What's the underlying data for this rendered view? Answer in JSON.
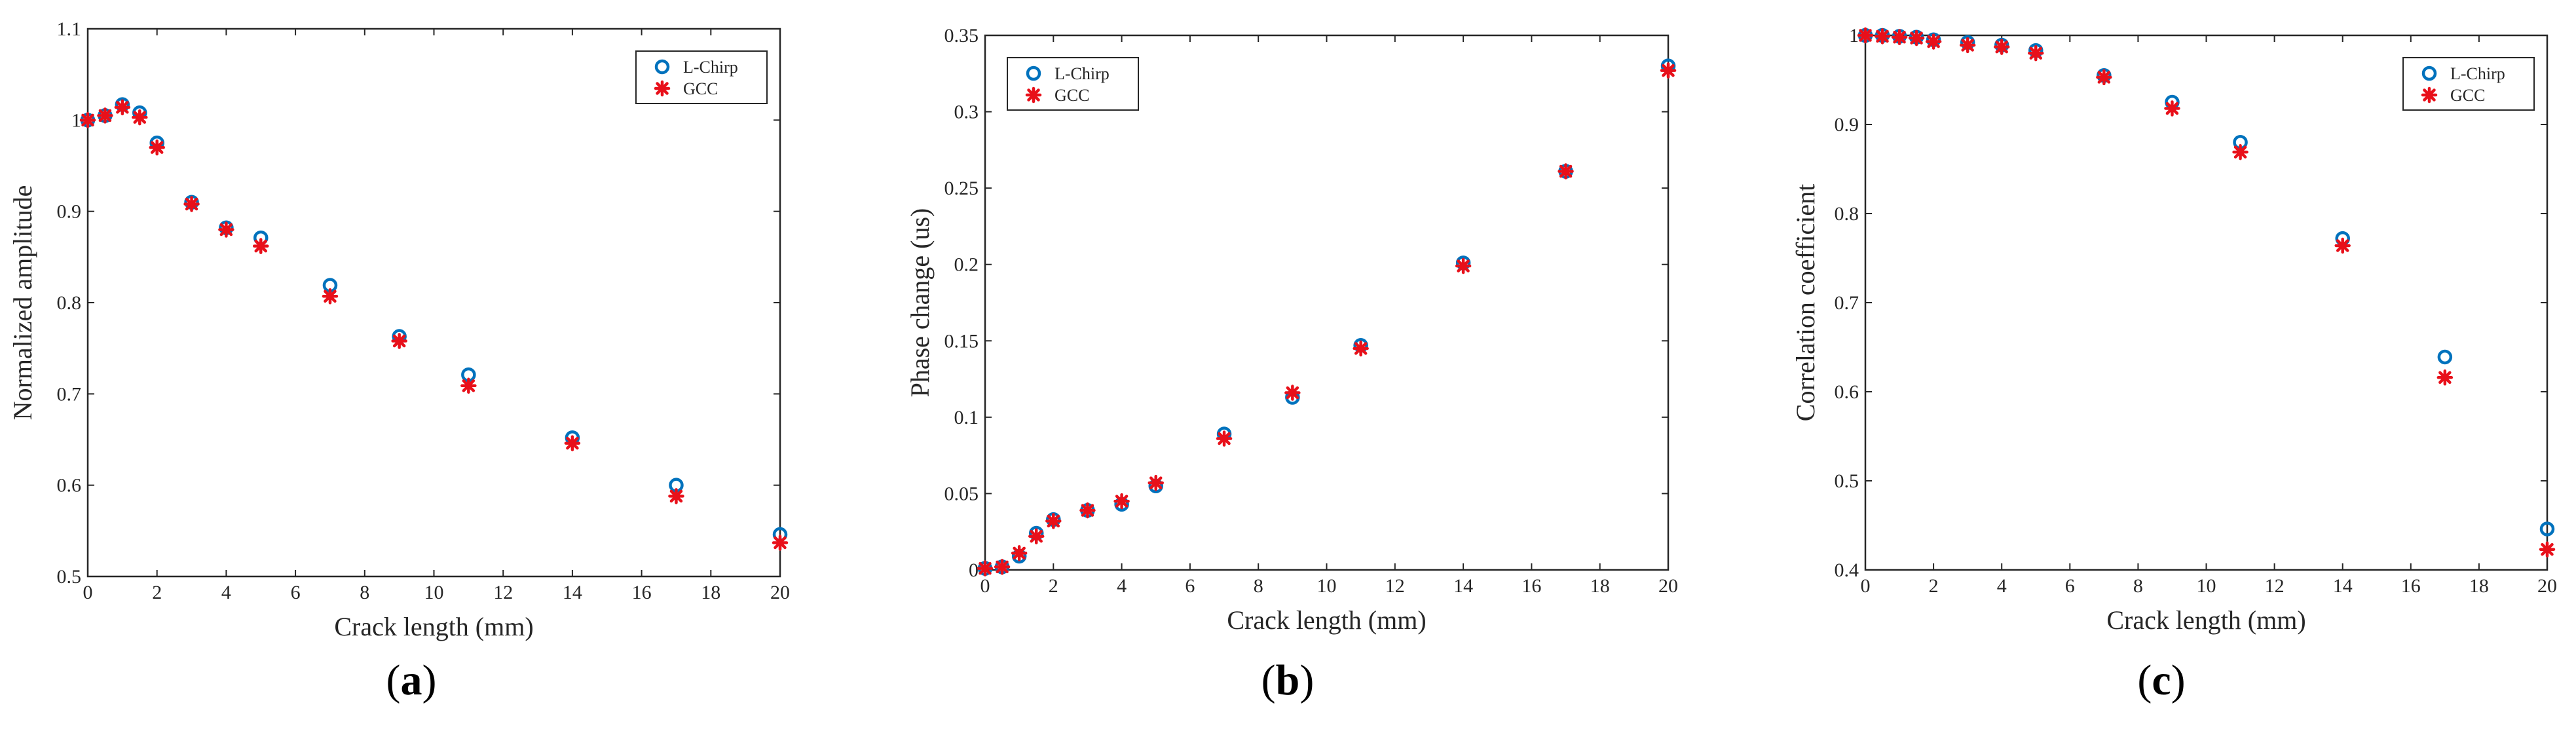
{
  "colors": {
    "l_chirp": "#0072BD",
    "gcc": "#E8101A",
    "axis": "#262626"
  },
  "legend": {
    "l_chirp_label": "L-Chirp",
    "gcc_label": "GCC"
  },
  "chart_data": [
    {
      "type": "scatter",
      "panel": "a",
      "panel_label": "(a)",
      "xlabel": "Crack length (mm)",
      "ylabel": "Normalized amplitude",
      "xlim": [
        0,
        20
      ],
      "ylim": [
        0.5,
        1.1
      ],
      "xticks": [
        0,
        2,
        4,
        6,
        8,
        10,
        12,
        14,
        16,
        18,
        20
      ],
      "yticks": [
        0.5,
        0.6,
        0.7,
        0.8,
        0.9,
        1,
        1.1
      ],
      "legend_position": "top-right",
      "x": [
        0,
        0.5,
        1,
        1.5,
        2,
        3,
        4,
        5,
        7,
        9,
        11,
        14,
        17,
        20
      ],
      "series": [
        {
          "name": "L-Chirp",
          "marker": "circle",
          "values": [
            1.0,
            1.005,
            1.017,
            1.008,
            0.975,
            0.91,
            0.882,
            0.871,
            0.819,
            0.763,
            0.721,
            0.652,
            0.6,
            0.546
          ]
        },
        {
          "name": "GCC",
          "marker": "asterisk",
          "values": [
            1.0,
            1.005,
            1.014,
            1.003,
            0.97,
            0.908,
            0.88,
            0.862,
            0.807,
            0.758,
            0.709,
            0.646,
            0.588,
            0.537
          ]
        }
      ]
    },
    {
      "type": "scatter",
      "panel": "b",
      "panel_label": "(b)",
      "xlabel": "Crack length (mm)",
      "ylabel": "Phase change (us)",
      "xlim": [
        0,
        20
      ],
      "ylim": [
        0,
        0.35
      ],
      "xticks": [
        0,
        2,
        4,
        6,
        8,
        10,
        12,
        14,
        16,
        18,
        20
      ],
      "yticks": [
        0,
        0.05,
        0.1,
        0.15,
        0.2,
        0.25,
        0.3,
        0.35
      ],
      "legend_position": "top-left",
      "x": [
        0,
        0.5,
        1,
        1.5,
        2,
        3,
        4,
        5,
        7,
        9,
        11,
        14,
        17,
        20
      ],
      "series": [
        {
          "name": "L-Chirp",
          "marker": "circle",
          "values": [
            0.001,
            0.002,
            0.009,
            0.024,
            0.033,
            0.039,
            0.043,
            0.055,
            0.089,
            0.113,
            0.147,
            0.201,
            0.261,
            0.33
          ]
        },
        {
          "name": "GCC",
          "marker": "asterisk",
          "values": [
            0.001,
            0.002,
            0.011,
            0.022,
            0.032,
            0.039,
            0.045,
            0.057,
            0.086,
            0.116,
            0.145,
            0.199,
            0.261,
            0.327
          ]
        }
      ]
    },
    {
      "type": "scatter",
      "panel": "c",
      "panel_label": "(c)",
      "xlabel": "Crack length (mm)",
      "ylabel": "Correlation coefficient",
      "xlim": [
        0,
        20
      ],
      "ylim": [
        0.4,
        1
      ],
      "xticks": [
        0,
        2,
        4,
        6,
        8,
        10,
        12,
        14,
        16,
        18,
        20
      ],
      "yticks": [
        0.4,
        0.5,
        0.6,
        0.7,
        0.8,
        0.9,
        1
      ],
      "legend_position": "top-right",
      "x": [
        0,
        0.5,
        1,
        1.5,
        2,
        3,
        4,
        5,
        7,
        9,
        11,
        14,
        17,
        20
      ],
      "series": [
        {
          "name": "L-Chirp",
          "marker": "circle",
          "values": [
            1.0,
            1.0,
            0.999,
            0.998,
            0.995,
            0.992,
            0.989,
            0.983,
            0.955,
            0.925,
            0.88,
            0.772,
            0.639,
            0.446
          ]
        },
        {
          "name": "GCC",
          "marker": "asterisk",
          "values": [
            1.0,
            0.999,
            0.998,
            0.997,
            0.993,
            0.989,
            0.987,
            0.98,
            0.953,
            0.918,
            0.869,
            0.764,
            0.616,
            0.423
          ]
        }
      ]
    }
  ]
}
